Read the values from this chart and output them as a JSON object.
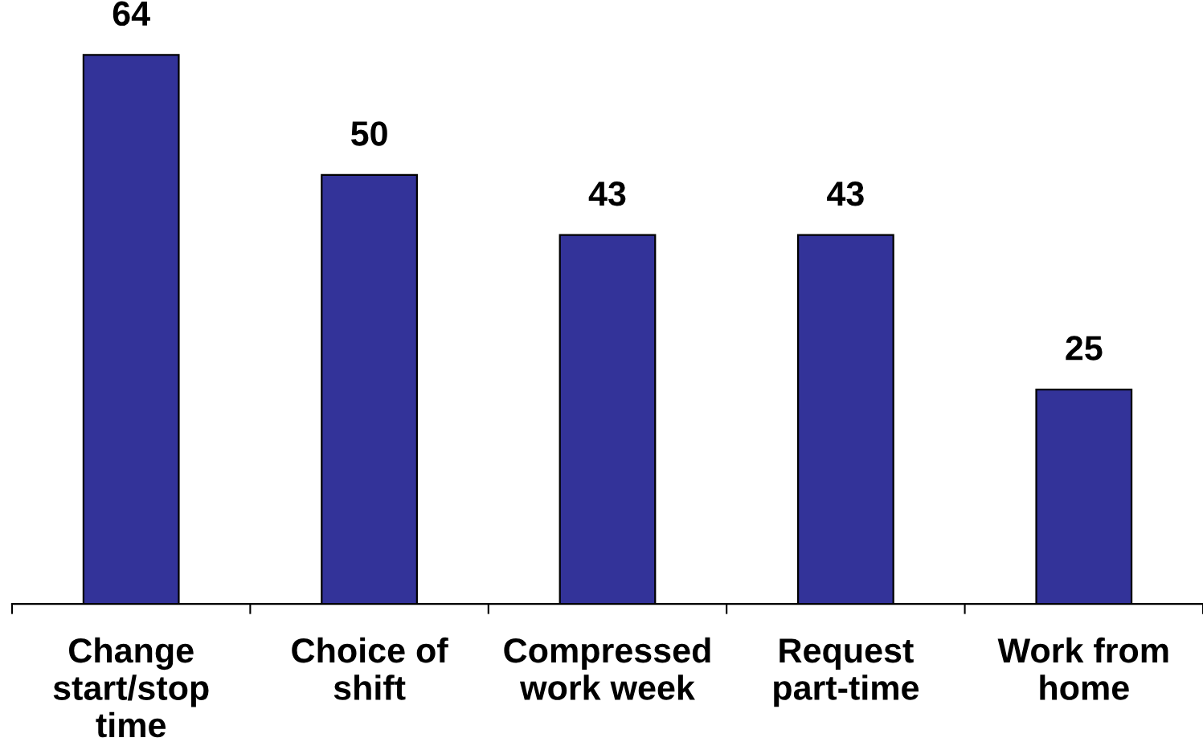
{
  "chart_data": {
    "type": "bar",
    "categories": [
      "Change\nstart/stop\ntime",
      "Choice of\nshift",
      "Compressed\nwork week",
      "Request\npart-time",
      "Work from\nhome"
    ],
    "values": [
      64,
      50,
      43,
      43,
      25
    ],
    "color": "#333399",
    "data_labels": true
  }
}
